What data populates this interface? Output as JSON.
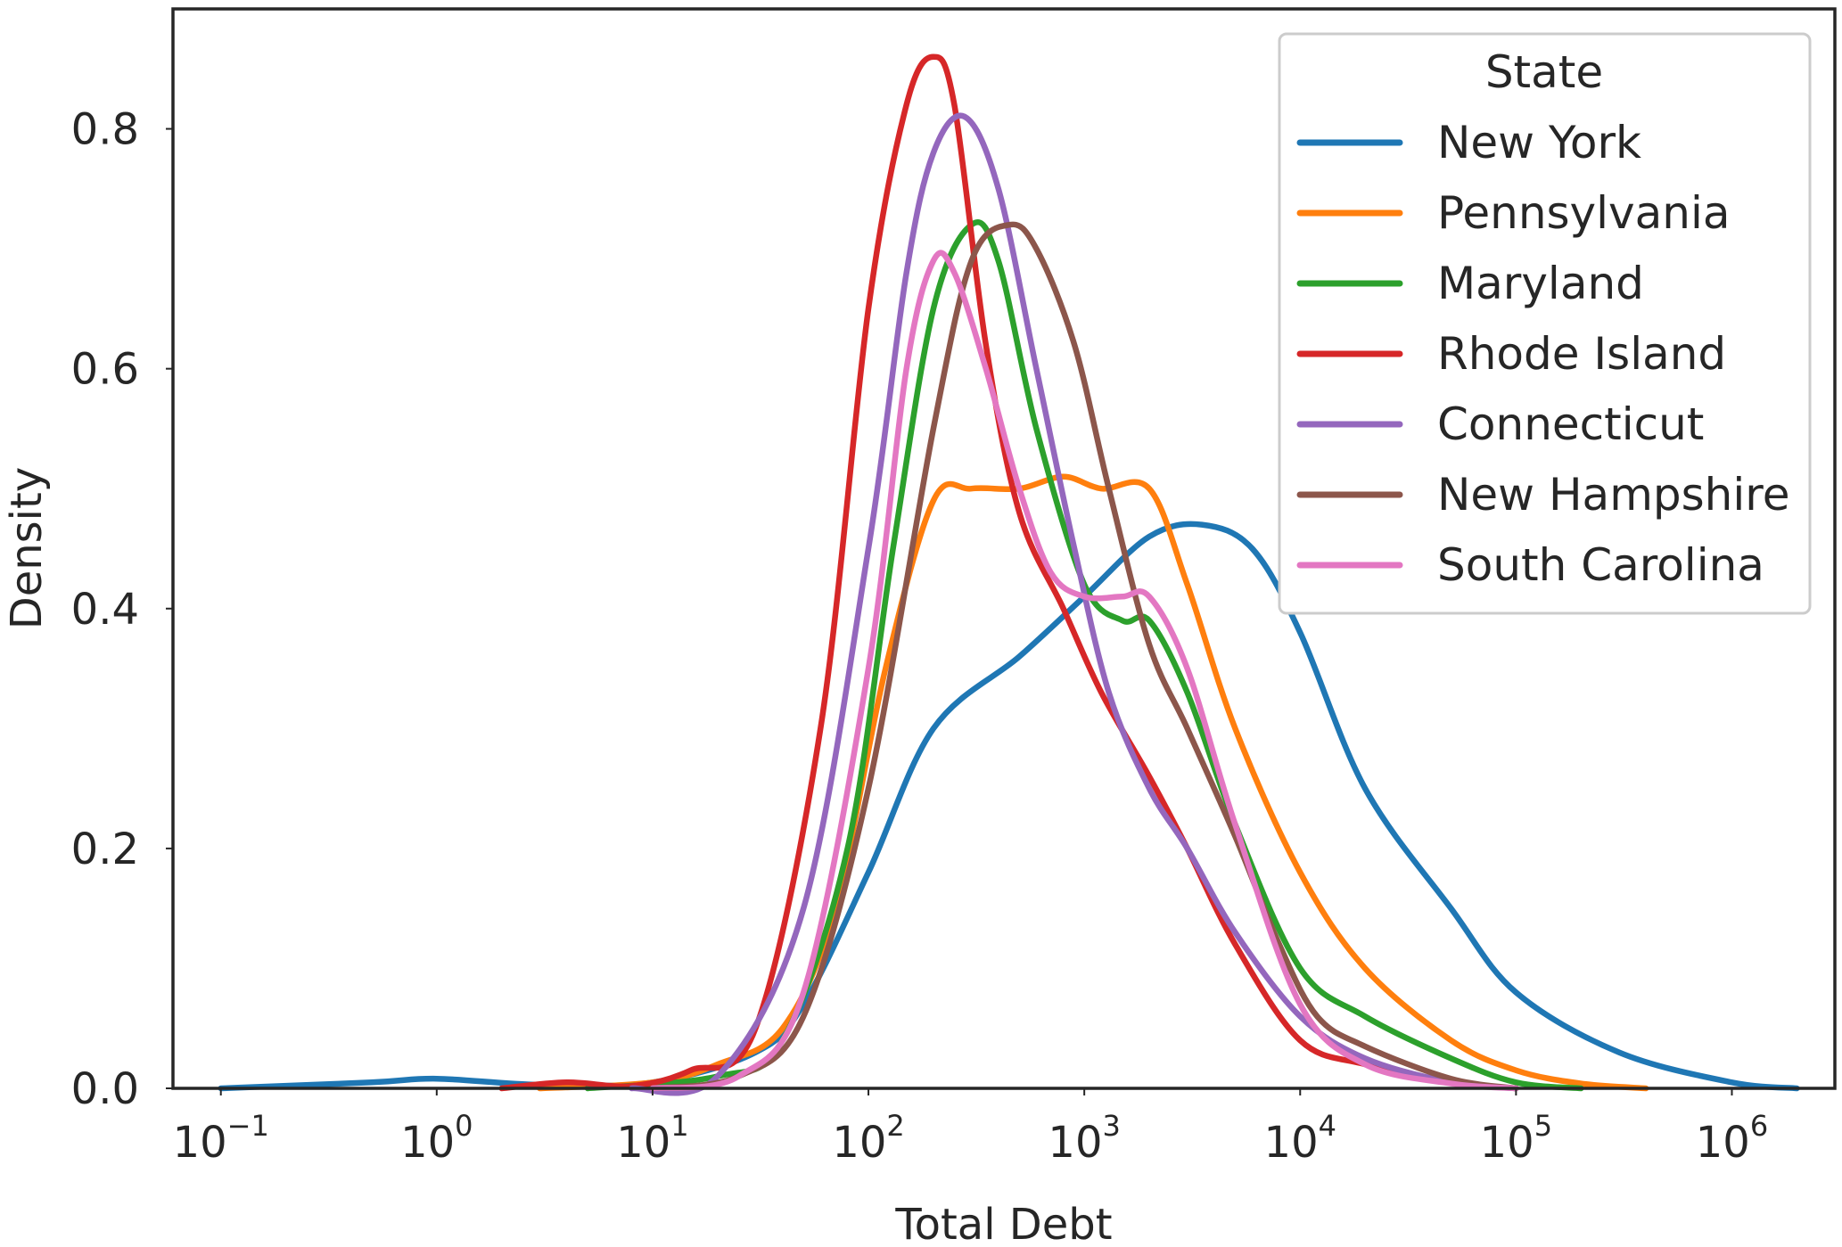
{
  "chart_data": {
    "type": "line",
    "xlabel": "Total Debt",
    "ylabel": "Density",
    "xscale": "log",
    "xlim": [
      0.06,
      3000000
    ],
    "ylim": [
      0,
      0.9
    ],
    "xticks": [
      {
        "value": 0.1,
        "base": "10",
        "exp": "−1"
      },
      {
        "value": 1,
        "base": "10",
        "exp": "0"
      },
      {
        "value": 10,
        "base": "10",
        "exp": "1"
      },
      {
        "value": 100,
        "base": "10",
        "exp": "2"
      },
      {
        "value": 1000,
        "base": "10",
        "exp": "3"
      },
      {
        "value": 10000,
        "base": "10",
        "exp": "4"
      },
      {
        "value": 100000,
        "base": "10",
        "exp": "5"
      },
      {
        "value": 1000000,
        "base": "10",
        "exp": "6"
      }
    ],
    "yticks": [
      {
        "value": 0.0,
        "label": "0.0"
      },
      {
        "value": 0.2,
        "label": "0.2"
      },
      {
        "value": 0.4,
        "label": "0.4"
      },
      {
        "value": 0.6,
        "label": "0.6"
      },
      {
        "value": 0.8,
        "label": "0.8"
      }
    ],
    "grid": false,
    "legend": {
      "title": "State",
      "position": "top-right"
    },
    "series": [
      {
        "name": "New York",
        "color": "#1f77b4",
        "x": [
          0.1,
          0.5,
          1,
          3,
          10,
          30,
          50,
          100,
          200,
          500,
          1000,
          2000,
          3500,
          6000,
          10000,
          20000,
          50000,
          100000,
          300000,
          1000000,
          2000000
        ],
        "y": [
          0.0,
          0.005,
          0.008,
          0.003,
          0.005,
          0.03,
          0.07,
          0.18,
          0.3,
          0.36,
          0.41,
          0.46,
          0.47,
          0.45,
          0.38,
          0.25,
          0.15,
          0.08,
          0.03,
          0.005,
          0.0
        ]
      },
      {
        "name": "Pennsylvania",
        "color": "#ff7f0e",
        "x": [
          3,
          10,
          20,
          40,
          70,
          120,
          200,
          300,
          500,
          800,
          1200,
          2000,
          3000,
          5000,
          10000,
          20000,
          50000,
          100000,
          200000,
          400000
        ],
        "y": [
          0.0,
          0.005,
          0.02,
          0.05,
          0.15,
          0.35,
          0.49,
          0.5,
          0.5,
          0.51,
          0.5,
          0.5,
          0.42,
          0.3,
          0.18,
          0.1,
          0.04,
          0.015,
          0.004,
          0.0
        ]
      },
      {
        "name": "Maryland",
        "color": "#2ca02c",
        "x": [
          5,
          20,
          40,
          80,
          130,
          200,
          300,
          400,
          600,
          1000,
          1500,
          2000,
          3000,
          5000,
          10000,
          20000,
          50000,
          100000,
          200000
        ],
        "y": [
          0.0,
          0.01,
          0.04,
          0.2,
          0.45,
          0.65,
          0.72,
          0.69,
          0.55,
          0.42,
          0.39,
          0.39,
          0.33,
          0.22,
          0.1,
          0.06,
          0.025,
          0.005,
          0.0
        ]
      },
      {
        "name": "Rhode Island",
        "color": "#d62728",
        "x": [
          2,
          4,
          8,
          15,
          30,
          60,
          100,
          150,
          200,
          250,
          350,
          500,
          800,
          1200,
          2000,
          3000,
          5000,
          10000,
          20000,
          50000,
          100000
        ],
        "y": [
          0.0,
          0.005,
          0.002,
          0.015,
          0.05,
          0.3,
          0.65,
          0.82,
          0.86,
          0.82,
          0.62,
          0.48,
          0.4,
          0.33,
          0.26,
          0.2,
          0.12,
          0.04,
          0.02,
          0.005,
          0.0
        ]
      },
      {
        "name": "Connecticut",
        "color": "#9467bd",
        "x": [
          8,
          20,
          50,
          100,
          150,
          200,
          280,
          400,
          600,
          900,
          1300,
          2000,
          3000,
          5000,
          10000,
          20000,
          50000,
          100000
        ],
        "y": [
          0.0,
          0.01,
          0.15,
          0.45,
          0.68,
          0.78,
          0.81,
          0.75,
          0.6,
          0.45,
          0.33,
          0.25,
          0.2,
          0.13,
          0.06,
          0.025,
          0.005,
          0.0
        ]
      },
      {
        "name": "New Hampshire",
        "color": "#8c564b",
        "x": [
          10,
          25,
          50,
          100,
          200,
          300,
          450,
          600,
          900,
          1300,
          2000,
          3000,
          5000,
          8000,
          12000,
          20000,
          50000,
          100000
        ],
        "y": [
          0.0,
          0.01,
          0.06,
          0.25,
          0.55,
          0.69,
          0.72,
          0.7,
          0.62,
          0.5,
          0.37,
          0.3,
          0.21,
          0.12,
          0.06,
          0.035,
          0.008,
          0.0
        ]
      },
      {
        "name": "South Carolina",
        "color": "#e377c2",
        "x": [
          10,
          25,
          50,
          100,
          150,
          200,
          250,
          350,
          500,
          700,
          1000,
          1500,
          2000,
          3000,
          5000,
          10000,
          20000,
          50000,
          100000
        ],
        "y": [
          0.0,
          0.01,
          0.08,
          0.35,
          0.6,
          0.69,
          0.68,
          0.6,
          0.5,
          0.43,
          0.41,
          0.41,
          0.41,
          0.35,
          0.22,
          0.07,
          0.02,
          0.004,
          0.0
        ]
      }
    ]
  }
}
